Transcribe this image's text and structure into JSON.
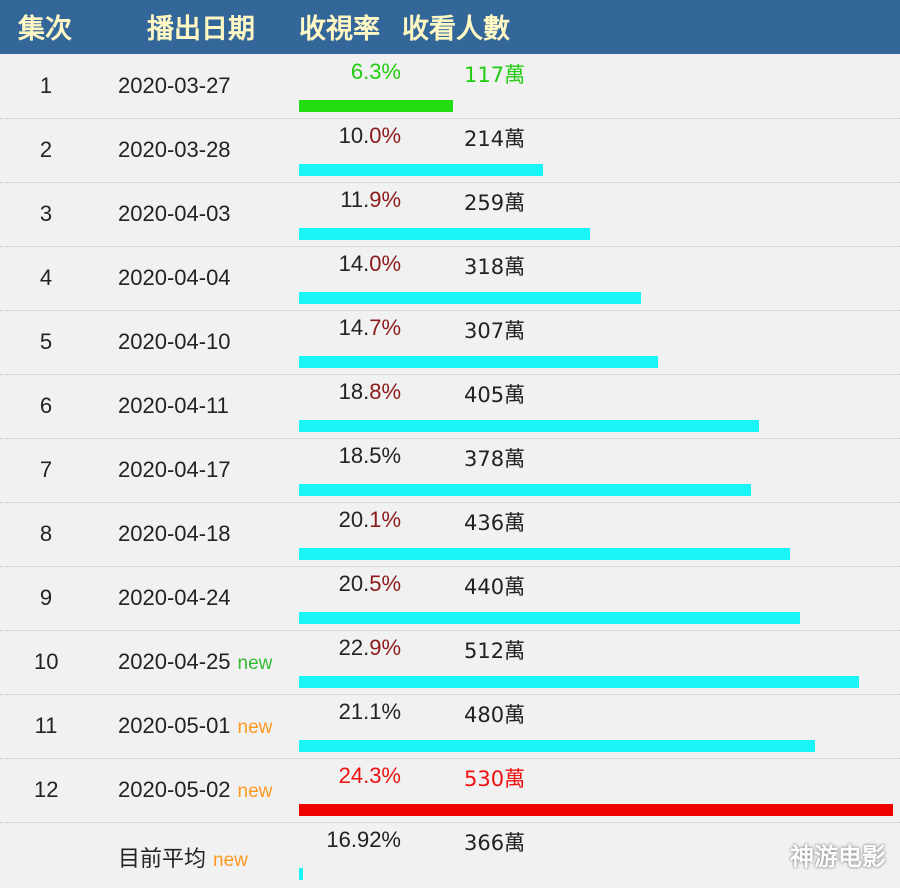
{
  "header": {
    "episode": "集次",
    "date": "播出日期",
    "rating": "收視率",
    "viewers": "收看人數"
  },
  "colors": {
    "header_bg": "#336699",
    "header_text": "#fff8c4",
    "bar_default": "#19f4f4",
    "bar_first": "#22dd11",
    "bar_last": "#ee0000",
    "tag_green": "#33bb33",
    "tag_orange": "#ff9922"
  },
  "chart_data": {
    "type": "bar",
    "value_unit": "%",
    "rows": [
      {
        "episode": "1",
        "date": "2020-03-27",
        "tag": "",
        "rating": "6.3%",
        "rating_value": 6.3,
        "viewers": "117萬",
        "highlight": "first"
      },
      {
        "episode": "2",
        "date": "2020-03-28",
        "tag": "",
        "rating": "10.0%",
        "rating_value": 10.0,
        "viewers": "214萬",
        "highlight": ""
      },
      {
        "episode": "3",
        "date": "2020-04-03",
        "tag": "",
        "rating": "11.9%",
        "rating_value": 11.9,
        "viewers": "259萬",
        "highlight": ""
      },
      {
        "episode": "4",
        "date": "2020-04-04",
        "tag": "",
        "rating": "14.0%",
        "rating_value": 14.0,
        "viewers": "318萬",
        "highlight": ""
      },
      {
        "episode": "5",
        "date": "2020-04-10",
        "tag": "",
        "rating": "14.7%",
        "rating_value": 14.7,
        "viewers": "307萬",
        "highlight": ""
      },
      {
        "episode": "6",
        "date": "2020-04-11",
        "tag": "",
        "rating": "18.8%",
        "rating_value": 18.8,
        "viewers": "405萬",
        "highlight": ""
      },
      {
        "episode": "7",
        "date": "2020-04-17",
        "tag": "",
        "rating": "18.5%",
        "rating_value": 18.5,
        "viewers": "378萬",
        "highlight": ""
      },
      {
        "episode": "8",
        "date": "2020-04-18",
        "tag": "",
        "rating": "20.1%",
        "rating_value": 20.1,
        "viewers": "436萬",
        "highlight": ""
      },
      {
        "episode": "9",
        "date": "2020-04-24",
        "tag": "",
        "rating": "20.5%",
        "rating_value": 20.5,
        "viewers": "440萬",
        "highlight": ""
      },
      {
        "episode": "10",
        "date": "2020-04-25",
        "tag": "new",
        "tag_color": "#33bb33",
        "rating": "22.9%",
        "rating_value": 22.9,
        "viewers": "512萬",
        "highlight": ""
      },
      {
        "episode": "11",
        "date": "2020-05-01",
        "tag": "new",
        "tag_color": "#ff9922",
        "rating": "21.1%",
        "rating_value": 21.1,
        "viewers": "480萬",
        "highlight": ""
      },
      {
        "episode": "12",
        "date": "2020-05-02",
        "tag": "new",
        "tag_color": "#ff9922",
        "rating": "24.3%",
        "rating_value": 24.3,
        "viewers": "530萬",
        "highlight": "last"
      }
    ],
    "average": {
      "label": "目前平均",
      "tag": "new",
      "tag_color": "#ff9922",
      "rating": "16.92%",
      "viewers": "366萬"
    },
    "watermark": "神游电影"
  }
}
